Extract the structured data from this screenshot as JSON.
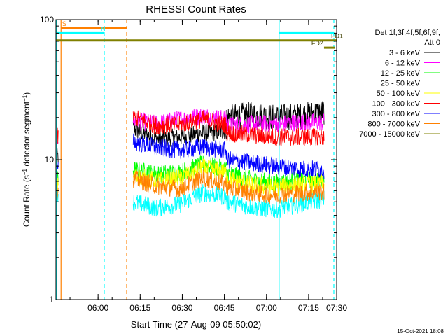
{
  "chart_data": {
    "type": "line",
    "title": "RHESSI Count Rates",
    "xlabel": "Start Time (27-Aug-09 05:50:02)",
    "ylabel": "Count Rate (s⁻¹ detector segment⁻¹)",
    "ylabel_main": "Count Rate (s",
    "ylabel_sup1": "−1",
    "ylabel_mid": " detector segment",
    "ylabel_sup2": "−1",
    "ylabel_end": ")",
    "y_scale": "log",
    "ylim": [
      1,
      100
    ],
    "y_ticks": [
      "1",
      "10",
      "100"
    ],
    "xlim_minutes": [
      5.0,
      105.0
    ],
    "x_ticks": [
      {
        "min": 20,
        "label": "06:00"
      },
      {
        "min": 35,
        "label": "06:15"
      },
      {
        "min": 50,
        "label": "06:30"
      },
      {
        "min": 65,
        "label": "06:45"
      },
      {
        "min": 80,
        "label": "07:00"
      },
      {
        "min": 95,
        "label": "07:15"
      },
      {
        "min": 110,
        "label": "07:30"
      }
    ],
    "legend_header": [
      "Det 1f,3f,4f,5f,6f,9f,",
      "Att 0"
    ],
    "series": [
      {
        "name": "3 - 6 keV",
        "color": "#000000",
        "segments": [
          [
            5.0,
            5.8,
            [
              10.5,
              10.5
            ]
          ],
          [
            32.5,
            65.8,
            [
              16.5,
              14,
              14.5,
              15.5,
              16
            ]
          ],
          [
            65.8,
            100.5,
            [
              20,
              21,
              20,
              20.5,
              22
            ]
          ]
        ]
      },
      {
        "name": "6 - 12 keV",
        "color": "#ff00ff",
        "segments": [
          [
            5.0,
            5.8,
            [
              14.5,
              14.5
            ]
          ],
          [
            32.5,
            65.8,
            [
              19,
              18,
              19.5,
              20.5,
              19.5
            ]
          ],
          [
            65.8,
            100.5,
            [
              17.5,
              18,
              18,
              18.5,
              18.5
            ]
          ]
        ]
      },
      {
        "name": "12 - 25 keV",
        "color": "#00ff00",
        "segments": [
          [
            5.0,
            5.8,
            [
              7.2,
              7.2
            ]
          ],
          [
            32.5,
            65.8,
            [
              8.5,
              7.9,
              8.1,
              9.3,
              8.5
            ]
          ],
          [
            65.8,
            100.5,
            [
              8,
              7.2,
              6.8,
              7.2,
              7.2
            ]
          ]
        ]
      },
      {
        "name": "25 - 50 keV",
        "color": "#00ffff",
        "segments": [
          [
            5.0,
            5.8,
            [
              5.8,
              5.8
            ]
          ],
          [
            32.5,
            65.8,
            [
              5.0,
              4.5,
              4.8,
              5.8,
              5.4
            ]
          ],
          [
            65.8,
            100.5,
            [
              5.0,
              4.6,
              4.4,
              4.8,
              5.2
            ]
          ]
        ]
      },
      {
        "name": "50 - 100 keV",
        "color": "#ffff00",
        "segments": [
          [
            5.0,
            5.8,
            [
              6.5,
              6.5
            ]
          ],
          [
            32.5,
            65.8,
            [
              7.6,
              7.1,
              7.4,
              8.8,
              8.0
            ]
          ],
          [
            65.8,
            100.5,
            [
              7.4,
              6.6,
              6.3,
              6.6,
              6.8
            ]
          ]
        ]
      },
      {
        "name": "100 - 300 keV",
        "color": "#ff0000",
        "segments": [
          [
            5.0,
            5.8,
            [
              14.5,
              14.5
            ]
          ],
          [
            32.5,
            65.8,
            [
              20,
              17.5,
              17.8,
              19.5,
              17.5
            ]
          ],
          [
            65.8,
            100.5,
            [
              15.5,
              15,
              14.5,
              14.5,
              14.5
            ]
          ]
        ]
      },
      {
        "name": "300 - 800 keV",
        "color": "#0000ff",
        "segments": [
          [
            5.0,
            5.8,
            [
              8.3,
              8.3
            ]
          ],
          [
            32.5,
            65.8,
            [
              13.5,
              12.2,
              11.7,
              12.3,
              11.6
            ]
          ],
          [
            65.8,
            100.5,
            [
              10,
              9.5,
              9.0,
              8.6,
              8.5
            ]
          ]
        ]
      },
      {
        "name": "800 - 7000 keV",
        "color": "#ff8000",
        "segments": [
          [
            5.0,
            5.8,
            [
              6.0,
              6.0
            ]
          ],
          [
            32.5,
            65.8,
            [
              7.3,
              6.5,
              6.2,
              7.4,
              6.6
            ]
          ],
          [
            65.8,
            100.5,
            [
              6.3,
              5.8,
              5.6,
              5.8,
              5.9
            ]
          ]
        ]
      },
      {
        "name": "7000 - 15000 keV",
        "color": "#808000",
        "segments": []
      }
    ],
    "bars": [
      {
        "label": "S",
        "color": "#ff8000",
        "x0": 6.8,
        "x1": 30.2,
        "y": 87,
        "label_x": 7.2
      },
      {
        "label": "N",
        "color": "#00ffff",
        "x0": 5.2,
        "x1": 22.2,
        "y": 80,
        "label_x": 21
      },
      {
        "label": "FD1",
        "color": "#808000",
        "x0": 5.0,
        "x1": 105.0,
        "y": 71,
        "label_x": 103
      },
      {
        "label": "",
        "color": "#00ffff",
        "x0": 84.5,
        "x1": 104.0,
        "y": 80,
        "label_x": 0
      },
      {
        "label": "FD2",
        "color": "#808000",
        "x0": 100.5,
        "x1": 104.4,
        "y": 63,
        "label_x": 96
      }
    ],
    "vlines": [
      {
        "x": 5.2,
        "color": "#00ffff",
        "style": "solid"
      },
      {
        "x": 6.8,
        "color": "#ff8000",
        "style": "solid"
      },
      {
        "x": 22.2,
        "color": "#00ffff",
        "style": "dashed"
      },
      {
        "x": 30.2,
        "color": "#ff8000",
        "style": "dashed"
      },
      {
        "x": 84.5,
        "color": "#00ffff",
        "style": "solid"
      },
      {
        "x": 104.0,
        "color": "#00ffff",
        "style": "dashed"
      }
    ],
    "grid": false,
    "legend_position": "right",
    "footer_date": "15-Oct-2021 18:08"
  }
}
